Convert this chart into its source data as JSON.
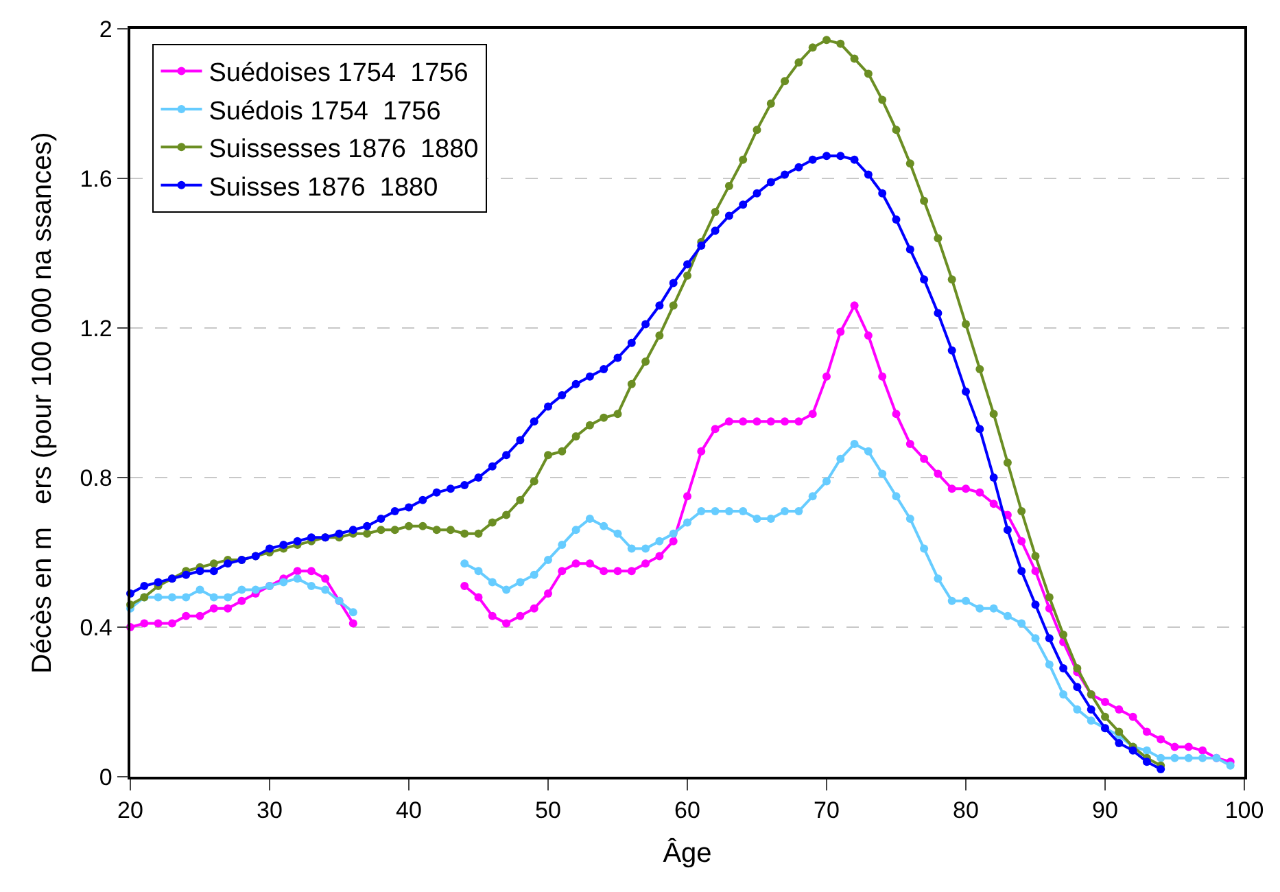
{
  "chart_data": {
    "type": "line",
    "xlabel": "Âge",
    "ylabel": "Décès en m   ers (pour 100 000 na ssances)",
    "x": [
      20,
      21,
      22,
      23,
      24,
      25,
      26,
      27,
      28,
      29,
      30,
      31,
      32,
      33,
      34,
      35,
      36,
      37,
      38,
      39,
      40,
      41,
      42,
      43,
      44,
      45,
      46,
      47,
      48,
      49,
      50,
      51,
      52,
      53,
      54,
      55,
      56,
      57,
      58,
      59,
      60,
      61,
      62,
      63,
      64,
      65,
      66,
      67,
      68,
      69,
      70,
      71,
      72,
      73,
      74,
      75,
      76,
      77,
      78,
      79,
      80,
      81,
      82,
      83,
      84,
      85,
      86,
      87,
      88,
      89,
      90,
      91,
      92,
      93,
      94,
      95,
      96,
      97,
      98,
      99
    ],
    "series": [
      {
        "name": "Suédoises 1754  1756",
        "color": "#ff00ff",
        "values": [
          0.4,
          0.41,
          0.41,
          0.41,
          0.43,
          0.43,
          0.45,
          0.45,
          0.47,
          0.49,
          0.51,
          0.53,
          0.55,
          0.55,
          0.53,
          0.47,
          0.41,
          null,
          null,
          null,
          null,
          null,
          null,
          null,
          0.51,
          0.48,
          0.43,
          0.41,
          0.43,
          0.45,
          0.49,
          0.55,
          0.57,
          0.57,
          0.55,
          0.55,
          0.55,
          0.57,
          0.59,
          0.63,
          0.75,
          0.87,
          0.93,
          0.95,
          0.95,
          0.95,
          0.95,
          0.95,
          0.95,
          0.97,
          1.07,
          1.19,
          1.26,
          1.18,
          1.07,
          0.97,
          0.89,
          0.85,
          0.81,
          0.77,
          0.77,
          0.76,
          0.73,
          0.7,
          0.63,
          0.55,
          0.45,
          0.36,
          0.28,
          0.22,
          0.2,
          0.18,
          0.16,
          0.12,
          0.1,
          0.08,
          0.08,
          0.07,
          0.05,
          0.04
        ]
      },
      {
        "name": "Suédois 1754  1756",
        "color": "#66ccff",
        "values": [
          0.45,
          0.48,
          0.48,
          0.48,
          0.48,
          0.5,
          0.48,
          0.48,
          0.5,
          0.5,
          0.51,
          0.52,
          0.53,
          0.51,
          0.5,
          0.47,
          0.44,
          null,
          null,
          null,
          null,
          null,
          null,
          null,
          0.57,
          0.55,
          0.52,
          0.5,
          0.52,
          0.54,
          0.58,
          0.62,
          0.66,
          0.69,
          0.67,
          0.65,
          0.61,
          0.61,
          0.63,
          0.65,
          0.68,
          0.71,
          0.71,
          0.71,
          0.71,
          0.69,
          0.69,
          0.71,
          0.71,
          0.75,
          0.79,
          0.85,
          0.89,
          0.87,
          0.81,
          0.75,
          0.69,
          0.61,
          0.53,
          0.47,
          0.47,
          0.45,
          0.45,
          0.43,
          0.41,
          0.37,
          0.3,
          0.22,
          0.18,
          0.15,
          0.13,
          0.11,
          0.08,
          0.07,
          0.05,
          0.05,
          0.05,
          0.05,
          0.05,
          0.03
        ]
      },
      {
        "name": "Suissesses 1876  1880",
        "color": "#6b8e23",
        "values": [
          0.46,
          0.48,
          0.51,
          0.53,
          0.55,
          0.56,
          0.57,
          0.58,
          0.58,
          0.59,
          0.6,
          0.61,
          0.62,
          0.63,
          0.64,
          0.64,
          0.65,
          0.65,
          0.66,
          0.66,
          0.67,
          0.67,
          0.66,
          0.66,
          0.65,
          0.65,
          0.68,
          0.7,
          0.74,
          0.79,
          0.86,
          0.87,
          0.91,
          0.94,
          0.96,
          0.97,
          1.05,
          1.11,
          1.18,
          1.26,
          1.34,
          1.43,
          1.51,
          1.58,
          1.65,
          1.73,
          1.8,
          1.86,
          1.91,
          1.95,
          1.97,
          1.96,
          1.92,
          1.88,
          1.81,
          1.73,
          1.64,
          1.54,
          1.44,
          1.33,
          1.21,
          1.09,
          0.97,
          0.84,
          0.71,
          0.59,
          0.48,
          0.38,
          0.29,
          0.22,
          0.16,
          0.12,
          0.08,
          0.05,
          0.03,
          null,
          null,
          null,
          null,
          null
        ]
      },
      {
        "name": "Suisses 1876  1880",
        "color": "#0000ff",
        "values": [
          0.49,
          0.51,
          0.52,
          0.53,
          0.54,
          0.55,
          0.55,
          0.57,
          0.58,
          0.59,
          0.61,
          0.62,
          0.63,
          0.64,
          0.64,
          0.65,
          0.66,
          0.67,
          0.69,
          0.71,
          0.72,
          0.74,
          0.76,
          0.77,
          0.78,
          0.8,
          0.83,
          0.86,
          0.9,
          0.95,
          0.99,
          1.02,
          1.05,
          1.07,
          1.09,
          1.12,
          1.16,
          1.21,
          1.26,
          1.32,
          1.37,
          1.42,
          1.46,
          1.5,
          1.53,
          1.56,
          1.59,
          1.61,
          1.63,
          1.65,
          1.66,
          1.66,
          1.65,
          1.61,
          1.56,
          1.49,
          1.41,
          1.33,
          1.24,
          1.14,
          1.03,
          0.93,
          0.8,
          0.66,
          0.55,
          0.46,
          0.37,
          0.29,
          0.24,
          0.18,
          0.13,
          0.09,
          0.07,
          0.04,
          0.02,
          null,
          null,
          null,
          null,
          null
        ]
      }
    ],
    "xlim": [
      20,
      100
    ],
    "xticks": [
      20,
      30,
      40,
      50,
      60,
      70,
      80,
      90,
      100
    ],
    "ylim": [
      0,
      2
    ],
    "yticks": [
      0,
      0.4,
      0.8,
      1.2,
      1.6,
      2
    ],
    "grid": "y",
    "legend": "top left",
    "marker": "circle",
    "line_style": "solid"
  }
}
